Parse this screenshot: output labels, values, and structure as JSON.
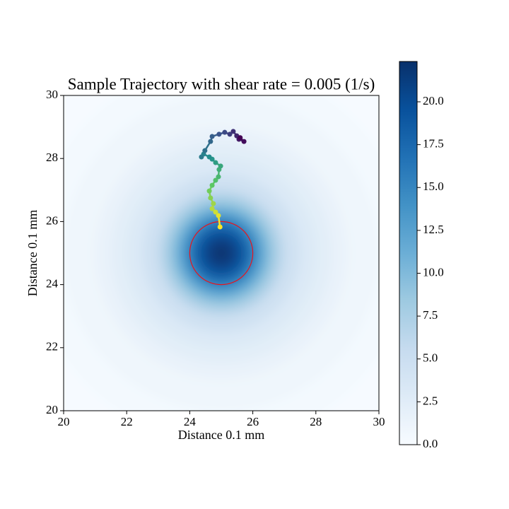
{
  "chart_data": {
    "type": "heatmap_trajectory",
    "title": "Sample Trajectory with shear rate = 0.005 (1/s)",
    "x_label": "Distance 0.1 mm",
    "y_label": "Distance 0.1 mm",
    "xlim": [
      20,
      30
    ],
    "ylim": [
      20,
      30
    ],
    "xticks": [
      20,
      22,
      24,
      26,
      28,
      30
    ],
    "yticks": [
      20,
      22,
      24,
      26,
      28,
      30
    ],
    "field": {
      "center": [
        25,
        25
      ],
      "r": [
        0,
        0.25,
        0.5,
        0.75,
        1,
        1.25,
        1.5,
        1.75,
        2,
        2.5,
        3,
        3.5,
        4,
        5,
        6,
        7.5
      ],
      "values": [
        22.3,
        22,
        21,
        19.5,
        17,
        14,
        11,
        8.5,
        6.5,
        4.5,
        3.2,
        2.3,
        1.6,
        0.9,
        0.4,
        0.1
      ]
    },
    "colormap": [
      "#f7fbff",
      "#deebf7",
      "#c6dbef",
      "#9ecae1",
      "#6baed6",
      "#4292c6",
      "#2171b5",
      "#08519c",
      "#08306b"
    ],
    "clim": [
      0,
      22.35
    ],
    "cticks": [
      {
        "value": 0,
        "label": "0.0"
      },
      2.5,
      {
        "value": 5,
        "label": "5.0"
      },
      7.5,
      {
        "value": 10,
        "label": "10.0"
      },
      12.5,
      {
        "value": 15,
        "label": "15.0"
      },
      17.5,
      {
        "value": 20,
        "label": "20.0"
      }
    ],
    "circle": {
      "center": [
        25,
        25
      ],
      "radius": 1,
      "color": "#e8141c"
    },
    "trajectory": {
      "x": [
        24.96,
        24.91,
        24.82,
        24.71,
        24.75,
        24.66,
        24.62,
        24.71,
        24.82,
        24.91,
        24.93,
        24.98,
        24.82,
        24.71,
        24.62,
        24.44,
        24.37,
        24.48,
        24.66,
        24.71,
        24.93,
        25.11,
        25.27,
        25.38,
        25.49,
        25.56,
        25.72,
        25.6
      ],
      "y": [
        25.83,
        26.19,
        26.3,
        26.41,
        26.57,
        26.75,
        26.97,
        27.15,
        27.31,
        27.42,
        27.65,
        27.76,
        27.87,
        27.98,
        28.05,
        28.14,
        28.05,
        28.25,
        28.54,
        28.7,
        28.77,
        28.83,
        28.77,
        28.86,
        28.72,
        28.61,
        28.54,
        28.66
      ],
      "colormap": [
        "#fde725",
        "#5ec962",
        "#21918c",
        "#3b528b",
        "#440154"
      ]
    }
  }
}
